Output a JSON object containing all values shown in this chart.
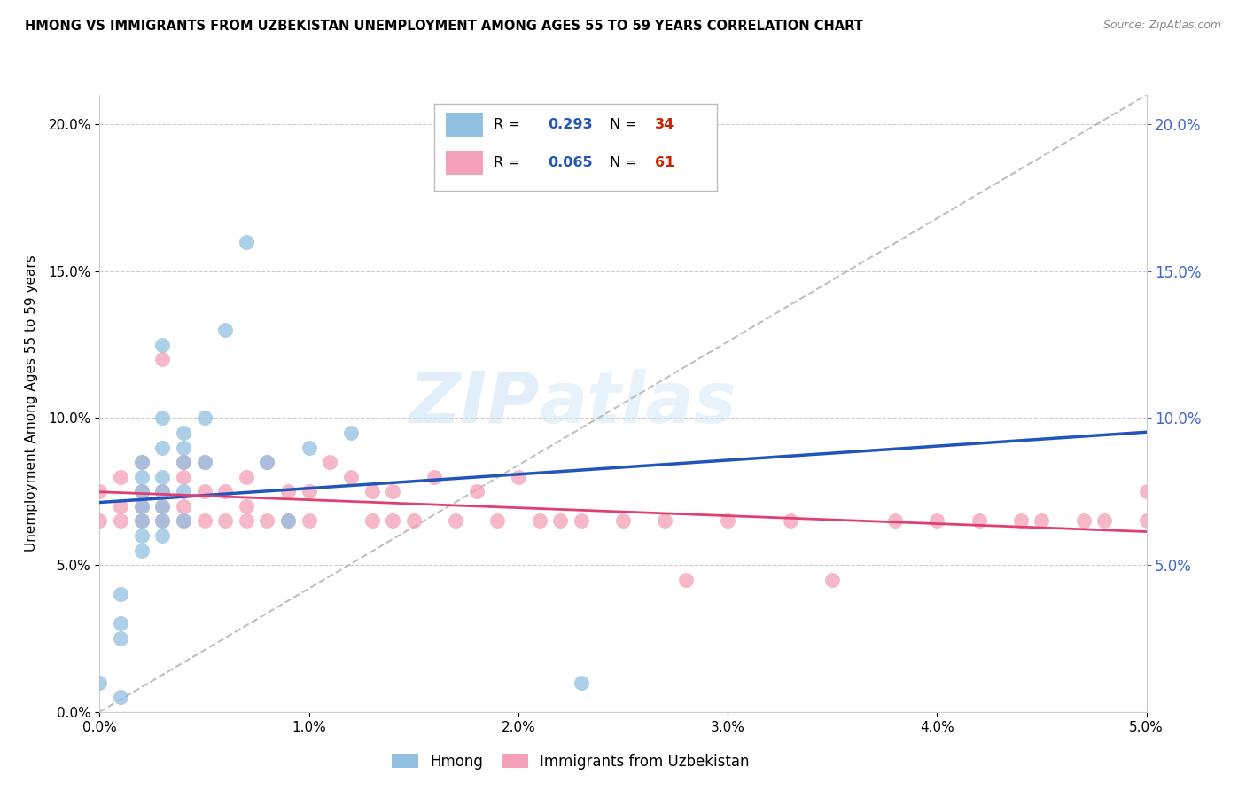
{
  "title": "HMONG VS IMMIGRANTS FROM UZBEKISTAN UNEMPLOYMENT AMONG AGES 55 TO 59 YEARS CORRELATION CHART",
  "source": "Source: ZipAtlas.com",
  "ylabel": "Unemployment Among Ages 55 to 59 years",
  "xmin": 0.0,
  "xmax": 0.05,
  "ymin": 0.0,
  "ymax": 0.21,
  "legend_R_blue": "0.293",
  "legend_N_blue": "34",
  "legend_R_pink": "0.065",
  "legend_N_pink": "61",
  "blue_color": "#92c0e0",
  "pink_color": "#f4a0b8",
  "blue_line_color": "#2255bb",
  "pink_line_color": "#e04070",
  "right_axis_color": "#4466cc",
  "watermark_zip": "ZIP",
  "watermark_atlas": "atlas",
  "background_color": "#ffffff",
  "grid_color": "#cccccc",
  "hmong_x": [
    0.0,
    0.001,
    0.001,
    0.001,
    0.001,
    0.002,
    0.002,
    0.002,
    0.002,
    0.002,
    0.002,
    0.002,
    0.003,
    0.003,
    0.003,
    0.003,
    0.003,
    0.003,
    0.003,
    0.003,
    0.004,
    0.004,
    0.004,
    0.004,
    0.004,
    0.005,
    0.005,
    0.006,
    0.007,
    0.008,
    0.009,
    0.01,
    0.012,
    0.023
  ],
  "hmong_y": [
    0.01,
    0.005,
    0.025,
    0.03,
    0.04,
    0.055,
    0.06,
    0.065,
    0.07,
    0.075,
    0.08,
    0.085,
    0.06,
    0.065,
    0.07,
    0.075,
    0.08,
    0.09,
    0.1,
    0.125,
    0.065,
    0.075,
    0.085,
    0.09,
    0.095,
    0.085,
    0.1,
    0.13,
    0.16,
    0.085,
    0.065,
    0.09,
    0.095,
    0.01
  ],
  "uzbek_x": [
    0.0,
    0.0,
    0.001,
    0.001,
    0.001,
    0.002,
    0.002,
    0.002,
    0.002,
    0.003,
    0.003,
    0.003,
    0.003,
    0.004,
    0.004,
    0.004,
    0.004,
    0.005,
    0.005,
    0.005,
    0.006,
    0.006,
    0.007,
    0.007,
    0.007,
    0.008,
    0.008,
    0.009,
    0.009,
    0.01,
    0.01,
    0.011,
    0.012,
    0.013,
    0.013,
    0.014,
    0.014,
    0.015,
    0.016,
    0.017,
    0.018,
    0.019,
    0.02,
    0.021,
    0.022,
    0.023,
    0.025,
    0.027,
    0.028,
    0.03,
    0.033,
    0.035,
    0.038,
    0.04,
    0.042,
    0.044,
    0.045,
    0.047,
    0.048,
    0.05,
    0.05
  ],
  "uzbek_y": [
    0.065,
    0.075,
    0.065,
    0.07,
    0.08,
    0.065,
    0.07,
    0.075,
    0.085,
    0.065,
    0.07,
    0.075,
    0.12,
    0.065,
    0.07,
    0.08,
    0.085,
    0.065,
    0.075,
    0.085,
    0.065,
    0.075,
    0.065,
    0.07,
    0.08,
    0.065,
    0.085,
    0.065,
    0.075,
    0.065,
    0.075,
    0.085,
    0.08,
    0.065,
    0.075,
    0.065,
    0.075,
    0.065,
    0.08,
    0.065,
    0.075,
    0.065,
    0.08,
    0.065,
    0.065,
    0.065,
    0.065,
    0.065,
    0.045,
    0.065,
    0.065,
    0.045,
    0.065,
    0.065,
    0.065,
    0.065,
    0.065,
    0.065,
    0.065,
    0.065,
    0.075
  ],
  "ref_line_x": [
    0.0,
    0.05
  ],
  "ref_line_y": [
    0.0,
    0.21
  ]
}
